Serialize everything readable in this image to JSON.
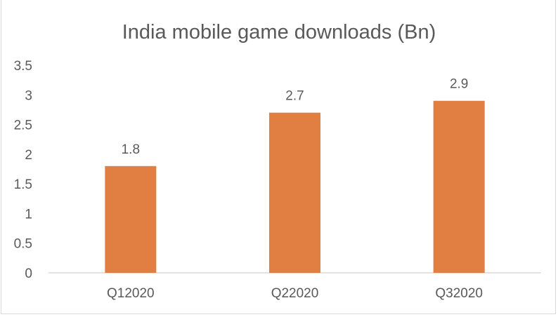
{
  "chart_data": {
    "type": "bar",
    "title": "India mobile game downloads (Bn)",
    "categories": [
      "Q12020",
      "Q22020",
      "Q32020"
    ],
    "values": [
      1.8,
      2.7,
      2.9
    ],
    "data_labels": [
      "1.8",
      "2.7",
      "2.9"
    ],
    "yticks": [
      "0",
      "0.5",
      "1",
      "1.5",
      "2",
      "2.5",
      "3",
      "3.5"
    ],
    "ylim": [
      0,
      3.5
    ],
    "grid": false,
    "legend": "none",
    "colors": {
      "bar": "#E07F41",
      "axis": "#d9d9d9",
      "text": "#595959"
    }
  }
}
